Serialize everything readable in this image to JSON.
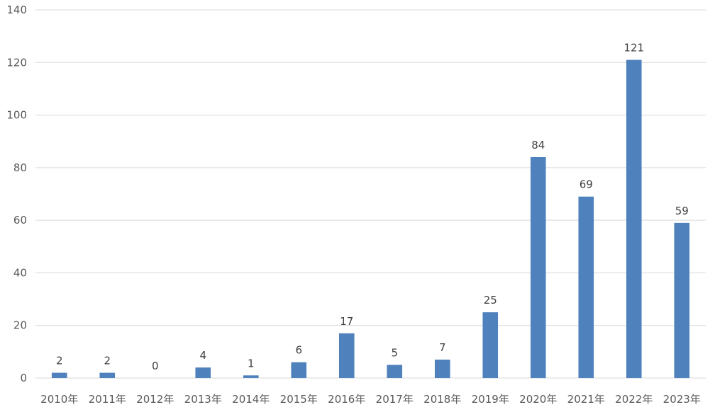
{
  "chart_data": {
    "type": "bar",
    "categories": [
      "2010年",
      "2011年",
      "2012年",
      "2013年",
      "2014年",
      "2015年",
      "2016年",
      "2017年",
      "2018年",
      "2019年",
      "2020年",
      "2021年",
      "2022年",
      "2023年"
    ],
    "values": [
      2,
      2,
      0,
      4,
      1,
      6,
      17,
      5,
      7,
      25,
      84,
      69,
      121,
      59
    ],
    "data_labels": [
      "2",
      "2",
      "0",
      "4",
      "1",
      "6",
      "17",
      "5",
      "7",
      "25",
      "84",
      "69",
      "121",
      "59"
    ],
    "yticks": [
      "0",
      "20",
      "40",
      "60",
      "80",
      "100",
      "120",
      "140"
    ],
    "ylim": [
      0,
      140
    ],
    "title": "",
    "xlabel": "",
    "ylabel": "",
    "grid": true,
    "legend": "none",
    "bar_color": "#4f81bd",
    "grid_color": "#d9d9d9"
  }
}
